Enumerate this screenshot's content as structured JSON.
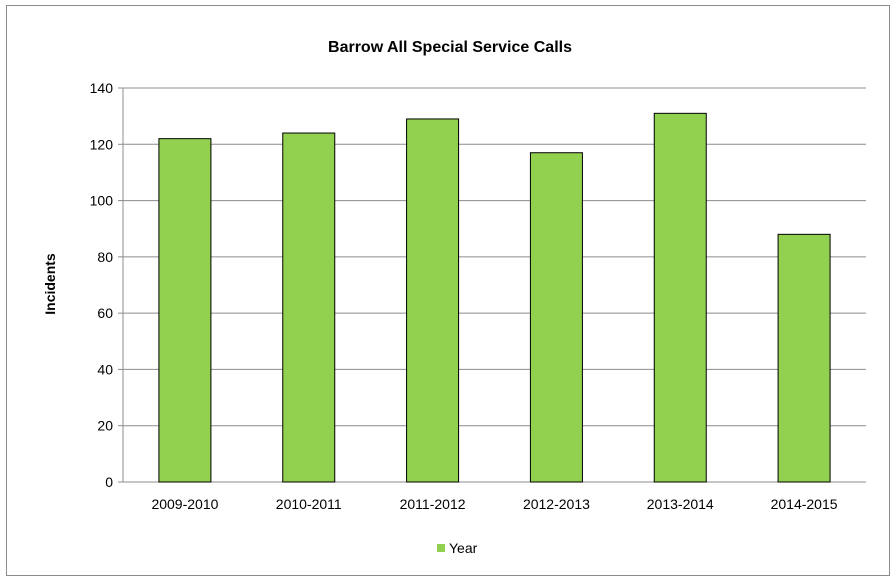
{
  "chart_data": {
    "type": "bar",
    "title": "Barrow All Special Service Calls",
    "xlabel": "",
    "ylabel": "Incidents",
    "categories": [
      "2009-2010",
      "2010-2011",
      "2011-2012",
      "2012-2013",
      "2013-2014",
      "2014-2015"
    ],
    "series": [
      {
        "name": "Year",
        "values": [
          122,
          124,
          129,
          117,
          131,
          88
        ]
      }
    ],
    "ylim": [
      0,
      140
    ],
    "yticks": [
      0,
      20,
      40,
      60,
      80,
      100,
      120,
      140
    ],
    "grid": true,
    "legend_position": "bottom",
    "colors": {
      "bar": "#92d050",
      "gridline": "#8c8c8c",
      "frame": "#8c8c8c"
    }
  }
}
